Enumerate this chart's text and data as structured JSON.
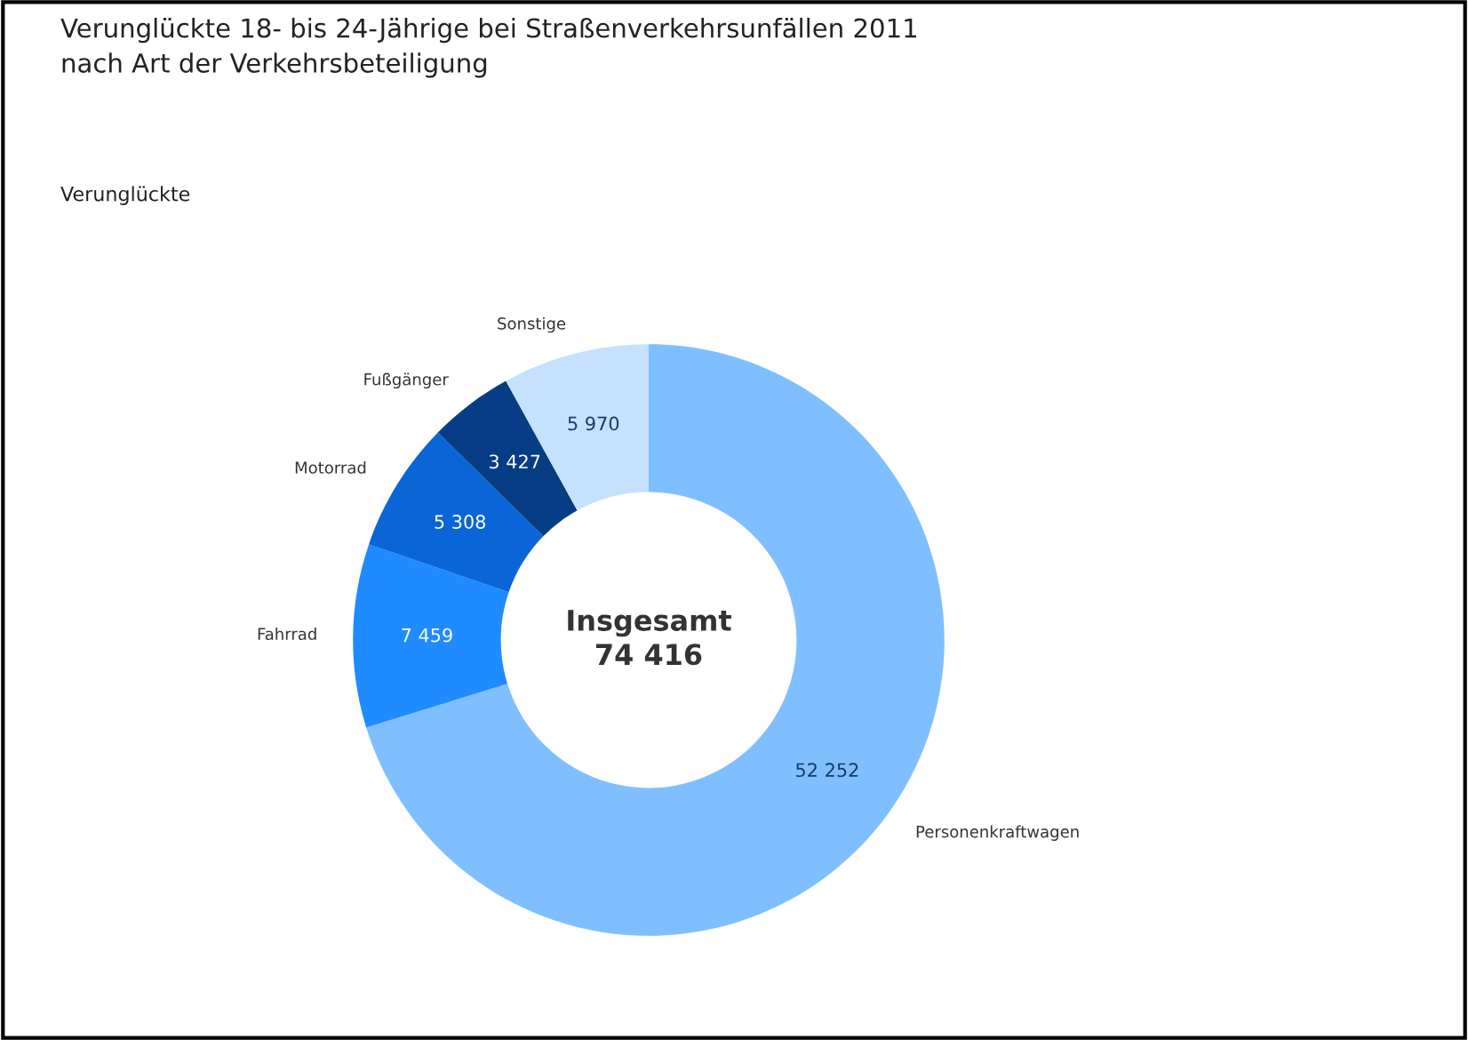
{
  "chart_data": {
    "type": "donut",
    "title": "Verunglückte 18- bis 24-Jährige bei Straßenverkehrsunfällen 2011\nnach Art der Verkehrsbeteiligung",
    "subtitle": "Verunglückte",
    "categories": [
      "Personenkraftwagen",
      "Fahrrad",
      "Motorrad",
      "Fußgänger",
      "Sonstige"
    ],
    "values": [
      52252,
      7459,
      5308,
      3427,
      5970
    ],
    "value_labels": [
      "52 252",
      "7 459",
      "5 308",
      "3 427",
      "5 970"
    ],
    "colors": [
      "#80bfff",
      "#1f8bff",
      "#0a66d6",
      "#063d85",
      "#c6e1ff"
    ],
    "annotations": [
      "Insgesamt\n74 416"
    ],
    "legend": false
  }
}
